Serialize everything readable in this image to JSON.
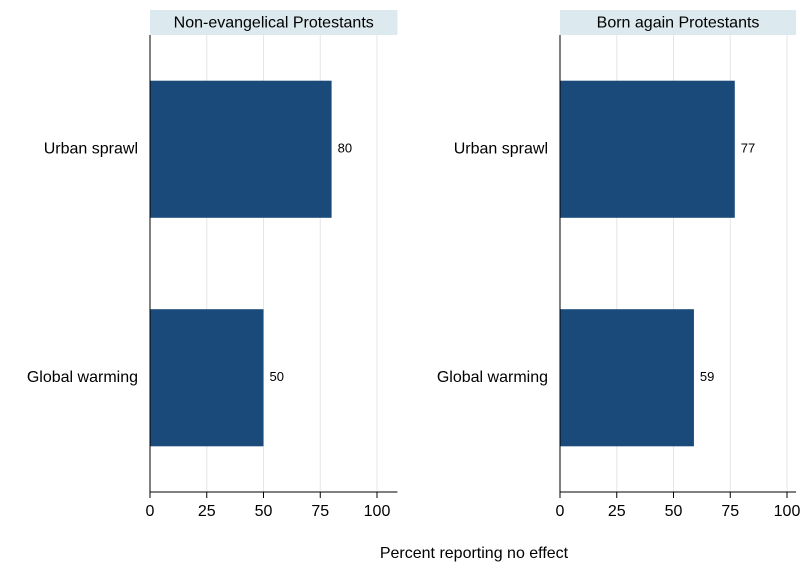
{
  "xlabel": "Percent reporting no effect",
  "chart_data": [
    {
      "type": "bar",
      "orientation": "horizontal",
      "title": "Non-evangelical Protestants",
      "categories": [
        "Urban sprawl",
        "Global warming"
      ],
      "values": [
        80,
        50
      ],
      "color": "#1a4a7a",
      "xlim": [
        0,
        109
      ],
      "xticks": [
        0,
        25,
        50,
        75,
        100
      ],
      "grid": true
    },
    {
      "type": "bar",
      "orientation": "horizontal",
      "title": "Born again Protestants",
      "categories": [
        "Urban sprawl",
        "Global warming"
      ],
      "values": [
        77,
        59
      ],
      "color": "#1a4a7a",
      "xlim": [
        0,
        104
      ],
      "xticks": [
        0,
        25,
        50,
        75,
        100
      ],
      "grid": true
    }
  ]
}
